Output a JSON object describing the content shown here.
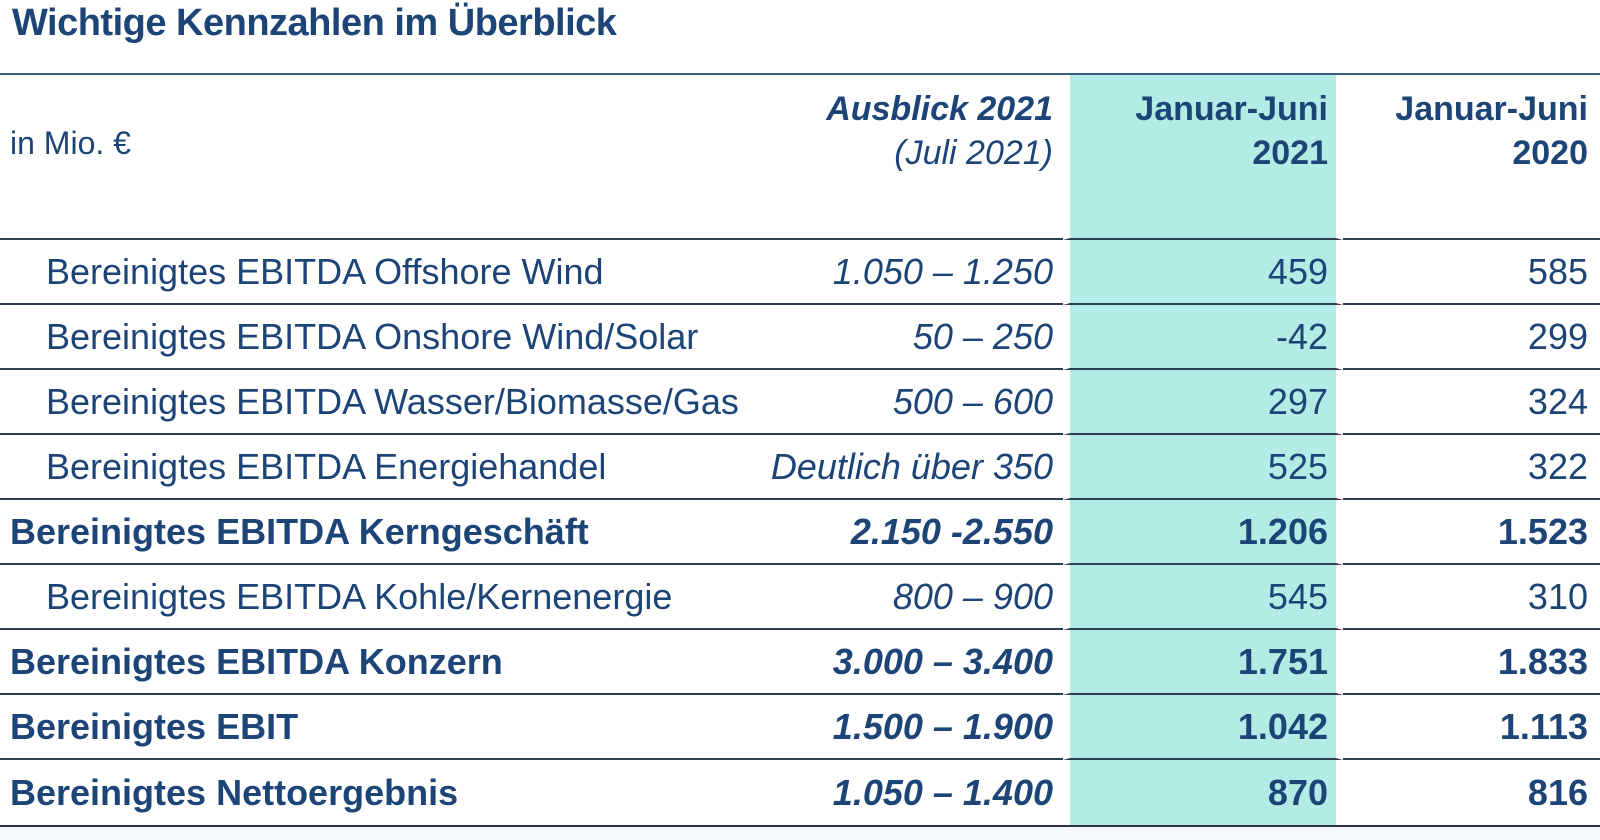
{
  "page": {
    "title": "Wichtige Kennzahlen im Überblick"
  },
  "table": {
    "unit_label": "in Mio. €",
    "columns": {
      "outlook": {
        "line1": "Ausblick 2021",
        "line2": "(Juli 2021)"
      },
      "h1_2021": {
        "line1": "Januar-Juni",
        "line2": "2021",
        "highlighted": true
      },
      "h1_2020": {
        "line1": "Januar-Juni",
        "line2": "2020"
      }
    },
    "rows": [
      {
        "label": "Bereinigtes EBITDA Offshore Wind",
        "outlook": "1.050 – 1.250",
        "h1_2021": "459",
        "h1_2020": "585",
        "bold": false
      },
      {
        "label": "Bereinigtes EBITDA Onshore Wind/Solar",
        "outlook": "50 – 250",
        "h1_2021": "-42",
        "h1_2020": "299",
        "bold": false
      },
      {
        "label": "Bereinigtes EBITDA Wasser/Biomasse/Gas",
        "outlook": "500 – 600",
        "h1_2021": "297",
        "h1_2020": "324",
        "bold": false
      },
      {
        "label": "Bereinigtes EBITDA Energiehandel",
        "outlook": "Deutlich über 350",
        "h1_2021": "525",
        "h1_2020": "322",
        "bold": false
      },
      {
        "label": "Bereinigtes EBITDA Kerngeschäft",
        "outlook": "2.150 -2.550",
        "h1_2021": "1.206",
        "h1_2020": "1.523",
        "bold": true
      },
      {
        "label": "Bereinigtes EBITDA Kohle/Kernenergie",
        "outlook": "800 – 900",
        "h1_2021": "545",
        "h1_2020": "310",
        "bold": false
      },
      {
        "label": "Bereinigtes EBITDA Konzern",
        "outlook": "3.000 – 3.400",
        "h1_2021": "1.751",
        "h1_2020": "1.833",
        "bold": true
      },
      {
        "label": "Bereinigtes EBIT",
        "outlook": "1.500 – 1.900",
        "h1_2021": "1.042",
        "h1_2020": "1.113",
        "bold": true
      },
      {
        "label": "Bereinigtes Nettoergebnis",
        "outlook": "1.050 – 1.400",
        "h1_2021": "870",
        "h1_2020": "816",
        "bold": true
      }
    ]
  },
  "colors": {
    "text_navy": "#1d4477",
    "rule_dark": "#2e3e50",
    "rule_top": "#3a5c84",
    "highlight_teal": "#b3ece4",
    "bottom_strip": "#f5f8fc",
    "background": "#ffffff"
  },
  "chart_data": {
    "type": "table",
    "title": "Wichtige Kennzahlen im Überblick",
    "unit": "in Mio. €",
    "columns": [
      "Ausblick 2021 (Juli 2021)",
      "Januar-Juni 2021",
      "Januar-Juni 2020"
    ],
    "rows": [
      [
        "Bereinigtes EBITDA Offshore Wind",
        "1.050 – 1.250",
        459,
        585
      ],
      [
        "Bereinigtes EBITDA Onshore Wind/Solar",
        "50 – 250",
        -42,
        299
      ],
      [
        "Bereinigtes EBITDA Wasser/Biomasse/Gas",
        "500 – 600",
        297,
        324
      ],
      [
        "Bereinigtes EBITDA Energiehandel",
        "Deutlich über 350",
        525,
        322
      ],
      [
        "Bereinigtes EBITDA Kerngeschäft",
        "2.150 -2.550",
        1206,
        1523
      ],
      [
        "Bereinigtes EBITDA Kohle/Kernenergie",
        "800 – 900",
        545,
        310
      ],
      [
        "Bereinigtes EBITDA Konzern",
        "3.000 – 3.400",
        1751,
        1833
      ],
      [
        "Bereinigtes EBIT",
        "1.500 – 1.900",
        1042,
        1113
      ],
      [
        "Bereinigtes Nettoergebnis",
        "1.050 – 1.400",
        870,
        816
      ]
    ],
    "highlighted_column": "Januar-Juni 2021"
  }
}
